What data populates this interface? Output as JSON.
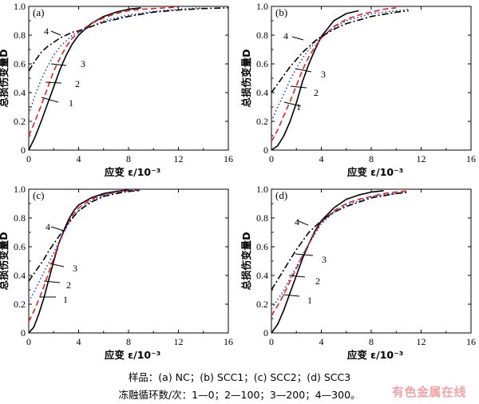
{
  "caption": {
    "specimens": "样品：(a) NC；(b) SCC1；(c) SCC2；(d) SCC3",
    "cycles": "冻融循环数/次：1—0；2—100；3—200；4—300。"
  },
  "watermark": "有色金属在线",
  "style": {
    "series_colors": [
      "#000000",
      "#e8201f",
      "#1f3fd9",
      "#000000"
    ],
    "series_dashes": [
      "solid",
      "dashed",
      "dotted",
      "dash-dot"
    ]
  },
  "chart_data": [
    {
      "type": "line",
      "panel_label": "(a)",
      "xlabel": "应变 ε/10⁻³",
      "ylabel": "总损伤变量D",
      "xlim": [
        0,
        16
      ],
      "ylim": [
        0,
        1.0
      ],
      "xticks": [
        "0",
        "4",
        "8",
        "12",
        "16"
      ],
      "yticks": [
        "0",
        "0.2",
        "0.4",
        "0.6",
        "0.8",
        "1.0"
      ],
      "grid": false,
      "curve_labels": [
        "1",
        "2",
        "3",
        "4"
      ],
      "series": [
        {
          "label": "1",
          "x": [
            0,
            0.5,
            1.0,
            1.5,
            2.0,
            2.5,
            3.0,
            3.5,
            4.0,
            5.0,
            6.0,
            7.0,
            8.0,
            9.0
          ],
          "y": [
            0,
            0.09,
            0.2,
            0.32,
            0.44,
            0.56,
            0.66,
            0.74,
            0.8,
            0.88,
            0.93,
            0.96,
            0.98,
            0.99
          ]
        },
        {
          "label": "2",
          "x": [
            0,
            0.5,
            1.0,
            1.5,
            2.0,
            2.5,
            3.0,
            3.5,
            4.0,
            5.0,
            6.0,
            7.0,
            8.0,
            9.0,
            10.0,
            11.0,
            12.0
          ],
          "y": [
            0.1,
            0.2,
            0.31,
            0.43,
            0.55,
            0.64,
            0.72,
            0.78,
            0.82,
            0.88,
            0.92,
            0.95,
            0.97,
            0.98,
            0.985,
            0.99,
            0.995
          ]
        },
        {
          "label": "3",
          "x": [
            0,
            0.5,
            1.0,
            1.5,
            2.0,
            2.5,
            3.0,
            3.5,
            4.0,
            5.0,
            6.0,
            8.0,
            10.0,
            12.0,
            14.0
          ],
          "y": [
            0.25,
            0.38,
            0.49,
            0.58,
            0.66,
            0.72,
            0.76,
            0.8,
            0.82,
            0.86,
            0.9,
            0.94,
            0.965,
            0.98,
            0.99
          ]
        },
        {
          "label": "4",
          "x": [
            0,
            0.5,
            1.0,
            1.5,
            2.0,
            2.5,
            3.0,
            3.5,
            4.0,
            5.0,
            6.0,
            8.0,
            10.0,
            12.0,
            14.0,
            16.0
          ],
          "y": [
            0.55,
            0.62,
            0.68,
            0.72,
            0.75,
            0.78,
            0.8,
            0.82,
            0.83,
            0.86,
            0.89,
            0.93,
            0.96,
            0.975,
            0.985,
            0.99
          ]
        }
      ]
    },
    {
      "type": "line",
      "panel_label": "(b)",
      "xlabel": "应变 ε/10⁻³",
      "ylabel": "总损伤变量D",
      "xlim": [
        0,
        16
      ],
      "ylim": [
        0,
        1.0
      ],
      "xticks": [
        "0",
        "4",
        "8",
        "12",
        "16"
      ],
      "yticks": [
        "0",
        "0.2",
        "0.4",
        "0.6",
        "0.8",
        "1.0"
      ],
      "grid": false,
      "curve_labels": [
        "1",
        "2",
        "3",
        "4"
      ],
      "series": [
        {
          "label": "1",
          "x": [
            0,
            0.5,
            1.0,
            1.5,
            2.0,
            2.5,
            3.0,
            3.5,
            4.0,
            5.0,
            6.0,
            7.0
          ],
          "y": [
            0,
            0.03,
            0.1,
            0.2,
            0.33,
            0.48,
            0.6,
            0.7,
            0.79,
            0.9,
            0.95,
            0.97
          ]
        },
        {
          "label": "2",
          "x": [
            0,
            0.5,
            1.0,
            1.5,
            2.0,
            2.5,
            3.0,
            3.5,
            4.0,
            5.0,
            6.0,
            7.0,
            8.0,
            9.0,
            10.0
          ],
          "y": [
            0.06,
            0.14,
            0.24,
            0.34,
            0.45,
            0.56,
            0.65,
            0.72,
            0.78,
            0.86,
            0.91,
            0.94,
            0.96,
            0.98,
            0.99
          ]
        },
        {
          "label": "3",
          "x": [
            0,
            0.5,
            1.0,
            1.5,
            2.0,
            2.5,
            3.0,
            3.5,
            4.0,
            5.0,
            6.0,
            8.0,
            10.0,
            11.0
          ],
          "y": [
            0.2,
            0.3,
            0.39,
            0.49,
            0.57,
            0.64,
            0.7,
            0.75,
            0.79,
            0.85,
            0.9,
            0.95,
            0.97,
            0.98
          ]
        },
        {
          "label": "4",
          "x": [
            0,
            0.5,
            1.0,
            1.5,
            2.0,
            2.5,
            3.0,
            3.5,
            4.0,
            5.0,
            6.0,
            8.0,
            10.0,
            11.0
          ],
          "y": [
            0.4,
            0.46,
            0.52,
            0.58,
            0.63,
            0.68,
            0.72,
            0.76,
            0.79,
            0.84,
            0.88,
            0.93,
            0.96,
            0.97
          ]
        }
      ]
    },
    {
      "type": "line",
      "panel_label": "(c)",
      "xlabel": "应变 ε/10⁻³",
      "ylabel": "总损伤变量D",
      "xlim": [
        0,
        16
      ],
      "ylim": [
        0,
        1.0
      ],
      "xticks": [
        "0",
        "4",
        "8",
        "12",
        "16"
      ],
      "yticks": [
        "0",
        "0.2",
        "0.4",
        "0.6",
        "0.8",
        "1.0"
      ],
      "grid": false,
      "curve_labels": [
        "1",
        "2",
        "3",
        "4"
      ],
      "series": [
        {
          "label": "1",
          "x": [
            0,
            0.4,
            0.8,
            1.2,
            1.6,
            2.0,
            2.4,
            2.8,
            3.2,
            3.6,
            4.0,
            5.0,
            6.0,
            7.0,
            8.0
          ],
          "y": [
            0,
            0.04,
            0.13,
            0.24,
            0.37,
            0.5,
            0.62,
            0.71,
            0.79,
            0.85,
            0.89,
            0.94,
            0.97,
            0.985,
            0.995
          ]
        },
        {
          "label": "2",
          "x": [
            0,
            0.4,
            0.8,
            1.2,
            1.6,
            2.0,
            2.4,
            2.8,
            3.2,
            3.6,
            4.0,
            5.0,
            6.0,
            7.0,
            8.0,
            9.0
          ],
          "y": [
            0.08,
            0.15,
            0.23,
            0.32,
            0.42,
            0.52,
            0.62,
            0.7,
            0.77,
            0.83,
            0.87,
            0.93,
            0.96,
            0.98,
            0.99,
            0.995
          ]
        },
        {
          "label": "3",
          "x": [
            0,
            0.4,
            0.8,
            1.2,
            1.6,
            2.0,
            2.4,
            2.8,
            3.2,
            3.6,
            4.0,
            5.0,
            6.0,
            7.0,
            8.0,
            9.0
          ],
          "y": [
            0.22,
            0.28,
            0.35,
            0.42,
            0.49,
            0.56,
            0.63,
            0.7,
            0.76,
            0.81,
            0.85,
            0.92,
            0.96,
            0.98,
            0.99,
            0.995
          ]
        },
        {
          "label": "4",
          "x": [
            0,
            0.4,
            0.8,
            1.2,
            1.6,
            2.0,
            2.4,
            2.8,
            3.2,
            3.6,
            4.0,
            5.0,
            6.0,
            7.0,
            8.0,
            9.0
          ],
          "y": [
            0.36,
            0.41,
            0.46,
            0.51,
            0.57,
            0.62,
            0.67,
            0.72,
            0.77,
            0.81,
            0.85,
            0.91,
            0.95,
            0.97,
            0.985,
            0.99
          ]
        }
      ]
    },
    {
      "type": "line",
      "panel_label": "(d)",
      "xlabel": "应变 ε/10⁻³",
      "ylabel": "总损伤变量D",
      "xlim": [
        0,
        16
      ],
      "ylim": [
        0,
        1.0
      ],
      "xticks": [
        "0",
        "4",
        "8",
        "12",
        "16"
      ],
      "yticks": [
        "0",
        "0.2",
        "0.4",
        "0.6",
        "0.8",
        "1.0"
      ],
      "grid": false,
      "curve_labels": [
        "1",
        "2",
        "3",
        "4"
      ],
      "series": [
        {
          "label": "1",
          "x": [
            0,
            0.5,
            1.0,
            1.5,
            2.0,
            2.5,
            3.0,
            3.5,
            4.0,
            5.0,
            6.0,
            7.0,
            8.0,
            9.0
          ],
          "y": [
            0,
            0.06,
            0.16,
            0.28,
            0.4,
            0.52,
            0.62,
            0.71,
            0.78,
            0.87,
            0.93,
            0.96,
            0.98,
            0.99
          ]
        },
        {
          "label": "2",
          "x": [
            0,
            0.5,
            1.0,
            1.5,
            2.0,
            2.5,
            3.0,
            3.5,
            4.0,
            5.0,
            6.0,
            7.0,
            8.0,
            9.0,
            10.0,
            11.0
          ],
          "y": [
            0.12,
            0.19,
            0.27,
            0.36,
            0.45,
            0.54,
            0.62,
            0.7,
            0.77,
            0.85,
            0.9,
            0.93,
            0.95,
            0.97,
            0.98,
            0.99
          ]
        },
        {
          "label": "3",
          "x": [
            0,
            0.5,
            1.0,
            1.5,
            2.0,
            2.5,
            3.0,
            3.5,
            4.0,
            5.0,
            6.0,
            8.0,
            10.0,
            11.0
          ],
          "y": [
            0.17,
            0.23,
            0.3,
            0.38,
            0.46,
            0.54,
            0.62,
            0.69,
            0.76,
            0.84,
            0.89,
            0.95,
            0.97,
            0.98
          ]
        },
        {
          "label": "4",
          "x": [
            0,
            0.5,
            1.0,
            1.5,
            2.0,
            2.5,
            3.0,
            3.5,
            4.0,
            5.0,
            6.0,
            8.0,
            10.0,
            11.0
          ],
          "y": [
            0.3,
            0.37,
            0.44,
            0.51,
            0.58,
            0.64,
            0.7,
            0.74,
            0.78,
            0.84,
            0.88,
            0.94,
            0.97,
            0.98
          ]
        }
      ]
    }
  ]
}
